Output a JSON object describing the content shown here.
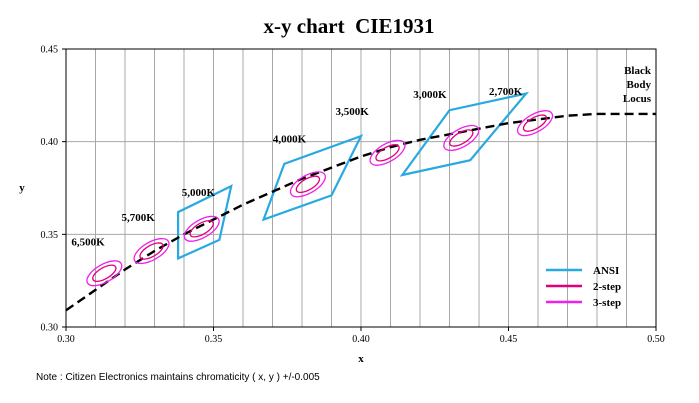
{
  "chart_data": {
    "type": "scatter",
    "title": "x-y chart  CIE1931",
    "xlabel": "x",
    "ylabel": "y",
    "xlim": [
      0.3,
      0.5
    ],
    "ylim": [
      0.3,
      0.45
    ],
    "x_ticks": [
      "0.30",
      "0.35",
      "0.40",
      "0.45",
      "0.50"
    ],
    "y_ticks": [
      "0.30",
      "0.35",
      "0.40",
      "0.45"
    ],
    "x_tick_values": [
      0.3,
      0.35,
      0.4,
      0.45,
      0.5
    ],
    "y_tick_values": [
      0.3,
      0.35,
      0.4,
      0.45
    ],
    "grid": "vertical minor every 0.01; horizontal at 0.35 and 0.40",
    "legend": {
      "placement": "lower-right",
      "entries": [
        {
          "name": "ANSI",
          "color": "#29a9e1"
        },
        {
          "name": "2-step",
          "color": "#e0007a"
        },
        {
          "name": "3-step",
          "color": "#ee21ee"
        }
      ]
    },
    "black_body_locus": {
      "label": [
        "Black",
        "Body",
        "Locus"
      ],
      "color": "#000000",
      "x": [
        0.3,
        0.31,
        0.32,
        0.33,
        0.34,
        0.35,
        0.36,
        0.37,
        0.38,
        0.39,
        0.4,
        0.41,
        0.42,
        0.43,
        0.44,
        0.45,
        0.46,
        0.47,
        0.48,
        0.49,
        0.5
      ],
      "y": [
        0.309,
        0.32,
        0.331,
        0.341,
        0.35,
        0.358,
        0.366,
        0.373,
        0.38,
        0.386,
        0.392,
        0.397,
        0.401,
        0.404,
        0.407,
        0.41,
        0.412,
        0.414,
        0.415,
        0.415,
        0.415
      ]
    },
    "cct_points": [
      {
        "label": "6,500K",
        "x": 0.313,
        "y": 0.329
      },
      {
        "label": "5,700K",
        "x": 0.329,
        "y": 0.341
      },
      {
        "label": "5,000K",
        "x": 0.346,
        "y": 0.353
      },
      {
        "label": "4,000K",
        "x": 0.382,
        "y": 0.377
      },
      {
        "label": "3,500K",
        "x": 0.409,
        "y": 0.394
      },
      {
        "label": "3,000K",
        "x": 0.434,
        "y": 0.402
      },
      {
        "label": "2,700K",
        "x": 0.459,
        "y": 0.41
      }
    ],
    "ansi_quadrangles": [
      {
        "cct": "5,000K",
        "points": [
          [
            0.338,
            0.337
          ],
          [
            0.338,
            0.362
          ],
          [
            0.356,
            0.376
          ],
          [
            0.352,
            0.347
          ]
        ]
      },
      {
        "cct": "4,000K",
        "points": [
          [
            0.367,
            0.358
          ],
          [
            0.374,
            0.388
          ],
          [
            0.4,
            0.403
          ],
          [
            0.39,
            0.371
          ]
        ]
      },
      {
        "cct": "3,000K",
        "points": [
          [
            0.414,
            0.382
          ],
          [
            0.43,
            0.417
          ],
          [
            0.456,
            0.426
          ],
          [
            0.437,
            0.39
          ]
        ]
      }
    ],
    "ellipses_2_step": {
      "rx": 0.0044,
      "ry": 0.003
    },
    "ellipses_3_step": {
      "rx": 0.0066,
      "ry": 0.0048
    }
  },
  "note": "Note : Citizen Electronics maintains chromaticity ( x, y ) +/-0.005"
}
